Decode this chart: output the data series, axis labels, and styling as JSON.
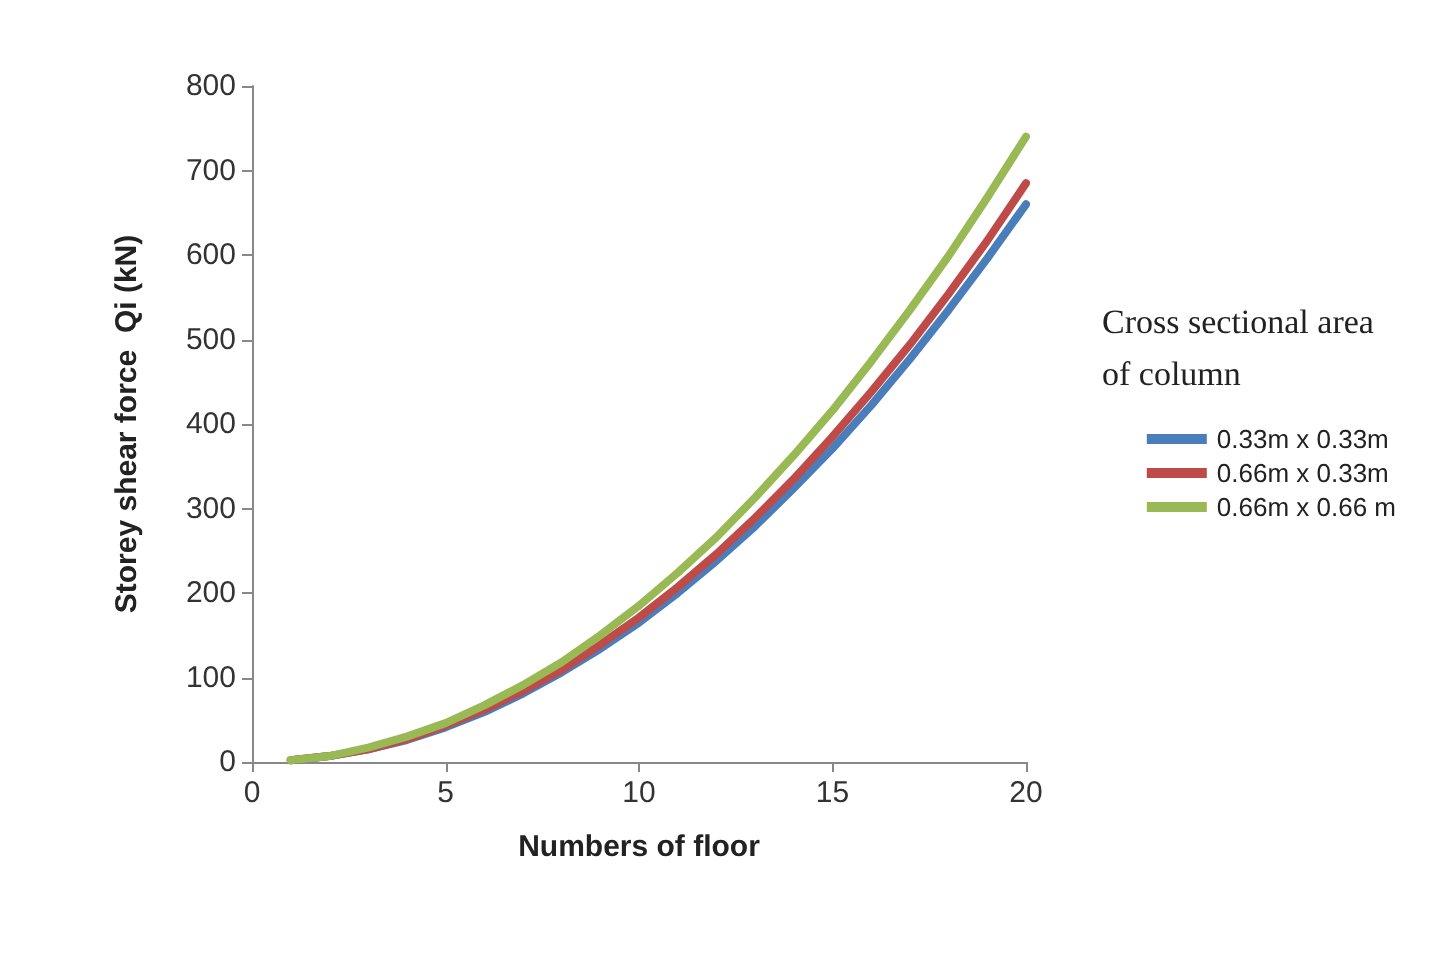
{
  "chart_data": {
    "type": "line",
    "xlabel": "Numbers of floor",
    "ylabel": "Storey shear force  Qi (kN)",
    "legend_title": "Cross sectional area of column",
    "x": [
      1,
      2,
      3,
      4,
      5,
      6,
      7,
      8,
      9,
      10,
      11,
      12,
      13,
      14,
      15,
      16,
      17,
      18,
      19,
      20
    ],
    "series": [
      {
        "name": "0.33m x 0.33m",
        "color": "#4a7ebb",
        "values": [
          2,
          7,
          15,
          26,
          41,
          59,
          81,
          106,
          134,
          165,
          200,
          238,
          279,
          324,
          371,
          422,
          477,
          535,
          596,
          660
        ]
      },
      {
        "name": "0.66m x 0.33m",
        "color": "#be4b48",
        "values": [
          2,
          7,
          15,
          27,
          43,
          62,
          84,
          109,
          139,
          171,
          207,
          246,
          289,
          335,
          385,
          438,
          494,
          554,
          617,
          685
        ]
      },
      {
        "name": "0.66m x 0.66 m",
        "color": "#98b954",
        "values": [
          2,
          7,
          17,
          30,
          46,
          67,
          91,
          118,
          150,
          185,
          224,
          266,
          313,
          363,
          416,
          474,
          535,
          599,
          668,
          740
        ]
      }
    ],
    "xlim": [
      0,
      20
    ],
    "xticks": [
      0,
      5,
      10,
      15,
      20
    ],
    "ylim": [
      0,
      800
    ],
    "yticks": [
      0,
      100,
      200,
      300,
      400,
      500,
      600,
      700,
      800
    ],
    "grid": false,
    "legend": "right",
    "marker": "none",
    "line_style": "solid"
  }
}
